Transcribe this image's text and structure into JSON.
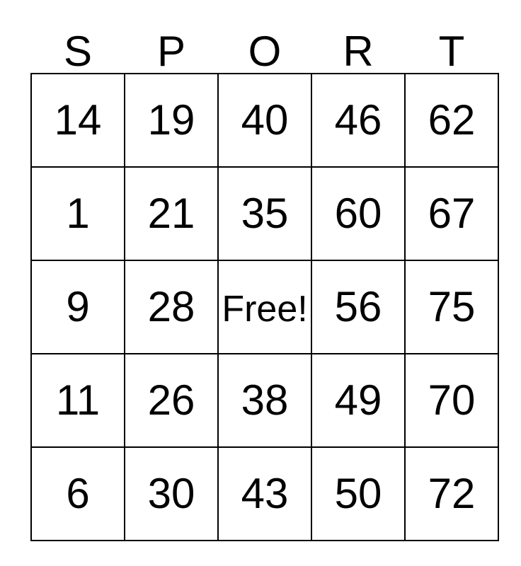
{
  "card": {
    "letters": [
      "S",
      "P",
      "O",
      "R",
      "T"
    ],
    "rows": [
      [
        "14",
        "19",
        "40",
        "46",
        "62"
      ],
      [
        "1",
        "21",
        "35",
        "60",
        "67"
      ],
      [
        "9",
        "28",
        "Free!",
        "56",
        "75"
      ],
      [
        "11",
        "26",
        "38",
        "49",
        "70"
      ],
      [
        "6",
        "30",
        "43",
        "50",
        "72"
      ]
    ],
    "free_cell": {
      "row": 2,
      "col": 2,
      "label": "Free!"
    },
    "colors": {
      "text": "#000000",
      "grid_border": "#000000",
      "background": "#ffffff"
    }
  }
}
